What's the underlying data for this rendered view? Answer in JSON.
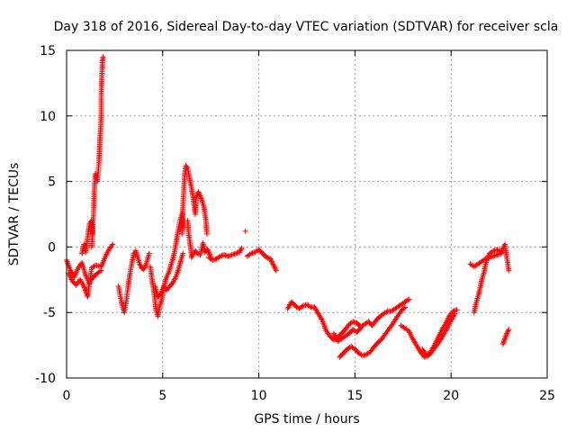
{
  "chart_data": {
    "type": "scatter",
    "title": "Day 318 of 2016, Sidereal Day-to-day VTEC variation (SDTVAR) for receiver scla",
    "xlabel": "GPS time / hours",
    "ylabel": "SDTVAR / TECUs",
    "xlim": [
      0,
      25
    ],
    "ylim": [
      -10,
      15
    ],
    "xticks": [
      0,
      5,
      10,
      15,
      20,
      25
    ],
    "yticks": [
      -10,
      -5,
      0,
      5,
      10,
      15
    ],
    "grid": true,
    "marker": "+",
    "series_color": "#ff0000",
    "segments": [
      [
        [
          0.0,
          -1.0
        ],
        [
          0.2,
          -1.8
        ],
        [
          0.4,
          -2.3
        ],
        [
          0.6,
          -1.6
        ],
        [
          0.8,
          -1.2
        ],
        [
          1.0,
          -2.2
        ],
        [
          1.2,
          -2.8
        ],
        [
          1.3,
          -1.6
        ],
        [
          1.5,
          -1.4
        ],
        [
          1.8,
          -1.5
        ],
        [
          2.0,
          -0.8
        ],
        [
          2.2,
          -0.2
        ],
        [
          2.4,
          0.2
        ]
      ],
      [
        [
          0.1,
          -2.0
        ],
        [
          0.3,
          -2.6
        ],
        [
          0.5,
          -2.9
        ],
        [
          0.7,
          -2.5
        ],
        [
          0.9,
          -3.0
        ],
        [
          1.0,
          -3.4
        ],
        [
          1.1,
          -3.8
        ],
        [
          1.2,
          -2.6
        ],
        [
          1.4,
          -2.3
        ],
        [
          1.6,
          -2.0
        ],
        [
          1.8,
          -1.8
        ]
      ],
      [
        [
          0.8,
          -0.5
        ],
        [
          0.9,
          0.2
        ],
        [
          1.0,
          -0.4
        ],
        [
          1.1,
          0.8
        ],
        [
          1.2,
          1.8
        ],
        [
          1.3,
          2.0
        ],
        [
          1.35,
          1.0
        ]
      ],
      [
        [
          1.3,
          0.0
        ],
        [
          1.4,
          2.5
        ],
        [
          1.45,
          4.5
        ],
        [
          1.5,
          5.6
        ],
        [
          1.6,
          5.0
        ],
        [
          1.65,
          5.8
        ],
        [
          1.7,
          7.0
        ],
        [
          1.75,
          8.5
        ],
        [
          1.8,
          10.0
        ],
        [
          1.8,
          11.5
        ],
        [
          1.82,
          12.5
        ],
        [
          1.85,
          13.5
        ],
        [
          1.87,
          14.2
        ],
        [
          1.9,
          14.5
        ]
      ],
      [
        [
          2.7,
          -3.0
        ],
        [
          2.8,
          -3.8
        ],
        [
          2.9,
          -4.5
        ],
        [
          3.0,
          -5.0
        ],
        [
          3.1,
          -4.2
        ],
        [
          3.2,
          -3.0
        ],
        [
          3.3,
          -2.0
        ],
        [
          3.4,
          -1.2
        ],
        [
          3.5,
          -0.5
        ],
        [
          3.6,
          -0.3
        ],
        [
          3.7,
          -0.8
        ],
        [
          3.8,
          -1.3
        ],
        [
          3.9,
          -1.6
        ],
        [
          4.0,
          -1.7
        ],
        [
          4.1,
          -1.5
        ],
        [
          4.2,
          -1.0
        ],
        [
          4.3,
          -0.5
        ]
      ],
      [
        [
          4.35,
          -1.5
        ],
        [
          4.45,
          -2.5
        ],
        [
          4.55,
          -3.5
        ],
        [
          4.65,
          -4.8
        ],
        [
          4.75,
          -5.3
        ],
        [
          4.85,
          -4.5
        ],
        [
          4.95,
          -4.0
        ],
        [
          5.05,
          -3.2
        ],
        [
          5.15,
          -2.5
        ],
        [
          5.3,
          -2.0
        ],
        [
          5.45,
          -1.3
        ],
        [
          5.6,
          -0.5
        ],
        [
          5.75,
          0.8
        ],
        [
          5.9,
          2.0
        ],
        [
          6.0,
          2.5
        ],
        [
          6.1,
          1.5
        ]
      ],
      [
        [
          4.6,
          -3.0
        ],
        [
          4.75,
          -3.8
        ],
        [
          4.9,
          -3.6
        ],
        [
          5.05,
          -3.0
        ],
        [
          5.2,
          -3.3
        ],
        [
          5.35,
          -3.0
        ],
        [
          5.5,
          -2.8
        ],
        [
          5.65,
          -2.4
        ],
        [
          5.8,
          -1.8
        ],
        [
          5.95,
          -1.0
        ],
        [
          6.05,
          -0.5
        ]
      ],
      [
        [
          6.0,
          1.0
        ],
        [
          6.05,
          3.0
        ],
        [
          6.1,
          4.5
        ],
        [
          6.15,
          5.5
        ],
        [
          6.2,
          6.2
        ],
        [
          6.3,
          6.0
        ],
        [
          6.4,
          5.2
        ],
        [
          6.5,
          4.5
        ],
        [
          6.6,
          3.5
        ],
        [
          6.7,
          2.5
        ],
        [
          6.75,
          3.8
        ],
        [
          6.85,
          4.2
        ],
        [
          6.95,
          3.9
        ],
        [
          7.05,
          3.5
        ],
        [
          7.15,
          3.0
        ],
        [
          7.25,
          2.0
        ],
        [
          7.3,
          1.0
        ]
      ],
      [
        [
          6.3,
          2.0
        ],
        [
          6.35,
          1.0
        ],
        [
          6.45,
          0.0
        ],
        [
          6.5,
          -0.8
        ],
        [
          6.6,
          -0.5
        ],
        [
          6.7,
          -0.3
        ],
        [
          6.8,
          -0.5
        ],
        [
          6.95,
          -0.6
        ],
        [
          7.1,
          0.3
        ],
        [
          7.2,
          -0.4
        ],
        [
          7.35,
          -0.2
        ],
        [
          7.5,
          -0.8
        ]
      ],
      [
        [
          7.4,
          -0.8
        ],
        [
          7.6,
          -1.0
        ],
        [
          7.8,
          -0.9
        ],
        [
          8.0,
          -0.7
        ],
        [
          8.2,
          -0.6
        ],
        [
          8.4,
          -0.7
        ],
        [
          8.6,
          -0.6
        ],
        [
          8.8,
          -0.5
        ],
        [
          9.0,
          -0.4
        ],
        [
          9.1,
          -0.1
        ]
      ],
      [
        [
          9.3,
          1.2
        ]
      ],
      [
        [
          9.4,
          -0.7
        ],
        [
          9.6,
          -0.5
        ],
        [
          9.8,
          -0.4
        ],
        [
          10.0,
          -0.2
        ],
        [
          10.2,
          -0.5
        ],
        [
          10.4,
          -0.8
        ],
        [
          10.6,
          -0.9
        ],
        [
          10.7,
          -1.2
        ],
        [
          10.8,
          -1.5
        ],
        [
          10.9,
          -1.8
        ]
      ],
      [
        [
          11.5,
          -4.7
        ],
        [
          11.7,
          -4.2
        ],
        [
          11.9,
          -4.5
        ],
        [
          12.1,
          -4.7
        ],
        [
          12.3,
          -4.5
        ],
        [
          12.5,
          -4.4
        ],
        [
          12.7,
          -4.6
        ],
        [
          12.9,
          -4.6
        ],
        [
          13.1,
          -5.1
        ],
        [
          13.3,
          -5.6
        ],
        [
          13.5,
          -6.4
        ],
        [
          13.7,
          -6.8
        ],
        [
          13.9,
          -7.1
        ],
        [
          14.1,
          -6.9
        ],
        [
          14.3,
          -6.6
        ],
        [
          14.5,
          -6.3
        ],
        [
          14.7,
          -5.9
        ],
        [
          14.9,
          -5.7
        ],
        [
          15.1,
          -5.8
        ],
        [
          15.3,
          -6.1
        ],
        [
          15.5,
          -5.9
        ],
        [
          15.7,
          -5.7
        ],
        [
          15.9,
          -6.0
        ],
        [
          16.1,
          -5.6
        ],
        [
          16.3,
          -5.3
        ],
        [
          16.5,
          -5.1
        ],
        [
          16.7,
          -4.9
        ],
        [
          16.9,
          -4.9
        ],
        [
          17.1,
          -4.7
        ],
        [
          17.3,
          -4.5
        ],
        [
          17.5,
          -4.3
        ],
        [
          17.7,
          -4.1
        ],
        [
          17.8,
          -4.0
        ]
      ],
      [
        [
          13.9,
          -6.6
        ],
        [
          14.1,
          -7.2
        ],
        [
          14.3,
          -7.0
        ],
        [
          14.5,
          -6.8
        ],
        [
          14.7,
          -6.6
        ],
        [
          14.9,
          -6.3
        ],
        [
          15.1,
          -6.5
        ],
        [
          15.3,
          -6.2
        ]
      ],
      [
        [
          14.2,
          -8.4
        ],
        [
          14.4,
          -8.1
        ],
        [
          14.6,
          -7.8
        ],
        [
          14.8,
          -7.6
        ],
        [
          15.0,
          -7.8
        ],
        [
          15.2,
          -8.1
        ],
        [
          15.4,
          -8.3
        ],
        [
          15.6,
          -8.2
        ],
        [
          15.8,
          -8.0
        ],
        [
          16.0,
          -7.6
        ],
        [
          16.2,
          -7.3
        ],
        [
          16.4,
          -7.0
        ],
        [
          16.6,
          -6.6
        ],
        [
          16.8,
          -6.2
        ],
        [
          17.0,
          -5.8
        ],
        [
          17.2,
          -5.3
        ],
        [
          17.4,
          -4.9
        ],
        [
          17.6,
          -4.6
        ]
      ],
      [
        [
          17.4,
          -6.0
        ],
        [
          17.6,
          -6.2
        ],
        [
          17.8,
          -6.4
        ],
        [
          18.0,
          -7.0
        ],
        [
          18.2,
          -7.5
        ],
        [
          18.4,
          -8.0
        ],
        [
          18.6,
          -8.4
        ],
        [
          18.8,
          -8.3
        ],
        [
          19.0,
          -8.0
        ],
        [
          19.2,
          -7.6
        ],
        [
          19.4,
          -7.2
        ],
        [
          19.6,
          -6.7
        ],
        [
          19.8,
          -6.2
        ],
        [
          20.0,
          -5.6
        ],
        [
          20.2,
          -5.1
        ]
      ],
      [
        [
          18.5,
          -7.8
        ],
        [
          18.7,
          -8.2
        ],
        [
          18.9,
          -8.1
        ],
        [
          19.1,
          -7.6
        ],
        [
          19.3,
          -7.0
        ],
        [
          19.5,
          -6.4
        ],
        [
          19.7,
          -5.9
        ],
        [
          19.9,
          -5.3
        ],
        [
          20.1,
          -4.9
        ],
        [
          20.3,
          -4.8
        ]
      ],
      [
        [
          21.0,
          -1.3
        ],
        [
          21.2,
          -1.5
        ],
        [
          21.4,
          -1.3
        ],
        [
          21.6,
          -1.1
        ],
        [
          21.8,
          -0.9
        ],
        [
          22.0,
          -0.8
        ],
        [
          22.2,
          -0.7
        ],
        [
          22.4,
          -0.6
        ],
        [
          22.6,
          -0.5
        ],
        [
          22.7,
          -0.3
        ]
      ],
      [
        [
          21.2,
          -5.0
        ],
        [
          21.3,
          -4.3
        ],
        [
          21.4,
          -3.8
        ],
        [
          21.5,
          -3.2
        ],
        [
          21.6,
          -2.5
        ],
        [
          21.7,
          -2.0
        ],
        [
          21.8,
          -1.3
        ],
        [
          21.9,
          -0.8
        ],
        [
          22.0,
          -0.5
        ],
        [
          22.2,
          -0.3
        ],
        [
          22.4,
          -0.2
        ],
        [
          22.6,
          -0.4
        ],
        [
          22.8,
          0.2
        ],
        [
          22.9,
          -0.8
        ],
        [
          22.95,
          -1.3
        ],
        [
          23.0,
          -1.8
        ]
      ],
      [
        [
          22.7,
          -7.4
        ],
        [
          22.8,
          -7.0
        ],
        [
          22.85,
          -6.8
        ],
        [
          22.9,
          -6.6
        ],
        [
          23.0,
          -6.3
        ]
      ]
    ]
  }
}
